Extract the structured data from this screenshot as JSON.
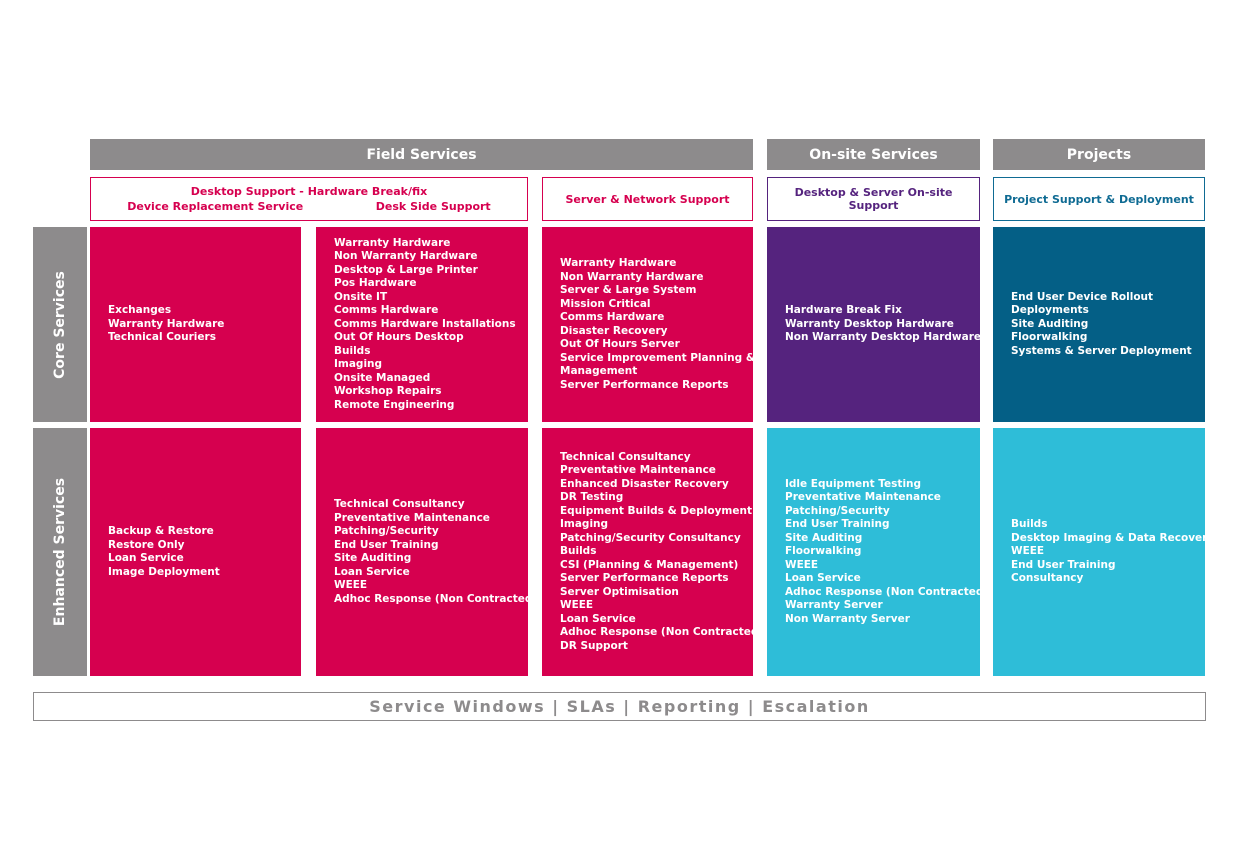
{
  "headers": {
    "field_services": "Field Services",
    "onsite_services": "On-site Services",
    "projects": "Projects"
  },
  "subheaders": {
    "desktop_support": "Desktop Support - Hardware Break/fix",
    "device_replacement": "Device Replacement Service",
    "desk_side": "Desk Side Support",
    "server_network": "Server & Network Support",
    "desktop_server_onsite": "Desktop & Server On-site Support",
    "project_support": "Project Support & Deployment"
  },
  "rows": {
    "core": "Core Services",
    "enhanced": "Enhanced Services"
  },
  "core": {
    "device_replacement": [
      "Exchanges",
      "Warranty Hardware",
      "Technical Couriers"
    ],
    "desk_side": [
      "Warranty Hardware",
      "Non Warranty Hardware",
      "Desktop & Large Printer",
      "Pos Hardware",
      "Onsite IT",
      "Comms Hardware",
      "Comms Hardware Installations",
      "Out Of Hours Desktop",
      "Builds",
      "Imaging",
      "Onsite Managed",
      "Workshop Repairs",
      "Remote Engineering"
    ],
    "server_network": [
      "Warranty Hardware",
      "Non Warranty Hardware",
      "Server & Large System",
      "Mission Critical",
      "Comms Hardware",
      "Disaster Recovery",
      "Out Of Hours Server",
      "Service Improvement Planning &",
      "Management",
      "Server Performance Reports"
    ],
    "onsite": [
      "Hardware Break Fix",
      "Warranty Desktop Hardware",
      "Non Warranty Desktop Hardware"
    ],
    "projects": [
      "End User Device Rollout",
      "Deployments",
      "Site Auditing",
      "Floorwalking",
      "Systems & Server Deployment"
    ]
  },
  "enhanced": {
    "device_replacement": [
      "Backup & Restore",
      "Restore Only",
      "Loan Service",
      "Image Deployment"
    ],
    "desk_side": [
      "Technical Consultancy",
      "Preventative Maintenance",
      "Patching/Security",
      "End User Training",
      "Site Auditing",
      "Loan Service",
      "WEEE",
      "Adhoc Response (Non Contracted)"
    ],
    "server_network": [
      "Technical Consultancy",
      "Preventative Maintenance",
      "Enhanced Disaster Recovery",
      "DR Testing",
      "Equipment Builds & Deployment",
      "Imaging",
      "Patching/Security Consultancy",
      "Builds",
      "CSI (Planning & Management)",
      "Server Performance Reports",
      "Server Optimisation",
      "WEEE",
      "Loan Service",
      "Adhoc Response (Non Contracted)",
      "DR Support"
    ],
    "onsite": [
      "Idle Equipment Testing",
      "Preventative Maintenance",
      "Patching/Security",
      "End User Training",
      "Site Auditing",
      "Floorwalking",
      "WEEE",
      "Loan Service",
      "Adhoc Response (Non Contracted)",
      "Warranty Server",
      "Non Warranty Server"
    ],
    "projects": [
      "Builds",
      "Desktop Imaging & Data Recovery",
      "WEEE",
      "End User Training",
      "Consultancy"
    ]
  },
  "footer": "Service Windows | SLAs | Reporting | Escalation",
  "colors": {
    "gray": "#8d8b8c",
    "magenta": "#d6004f",
    "purple": "#55237e",
    "teal": "#045f86",
    "cyan": "#2ebdd8"
  }
}
